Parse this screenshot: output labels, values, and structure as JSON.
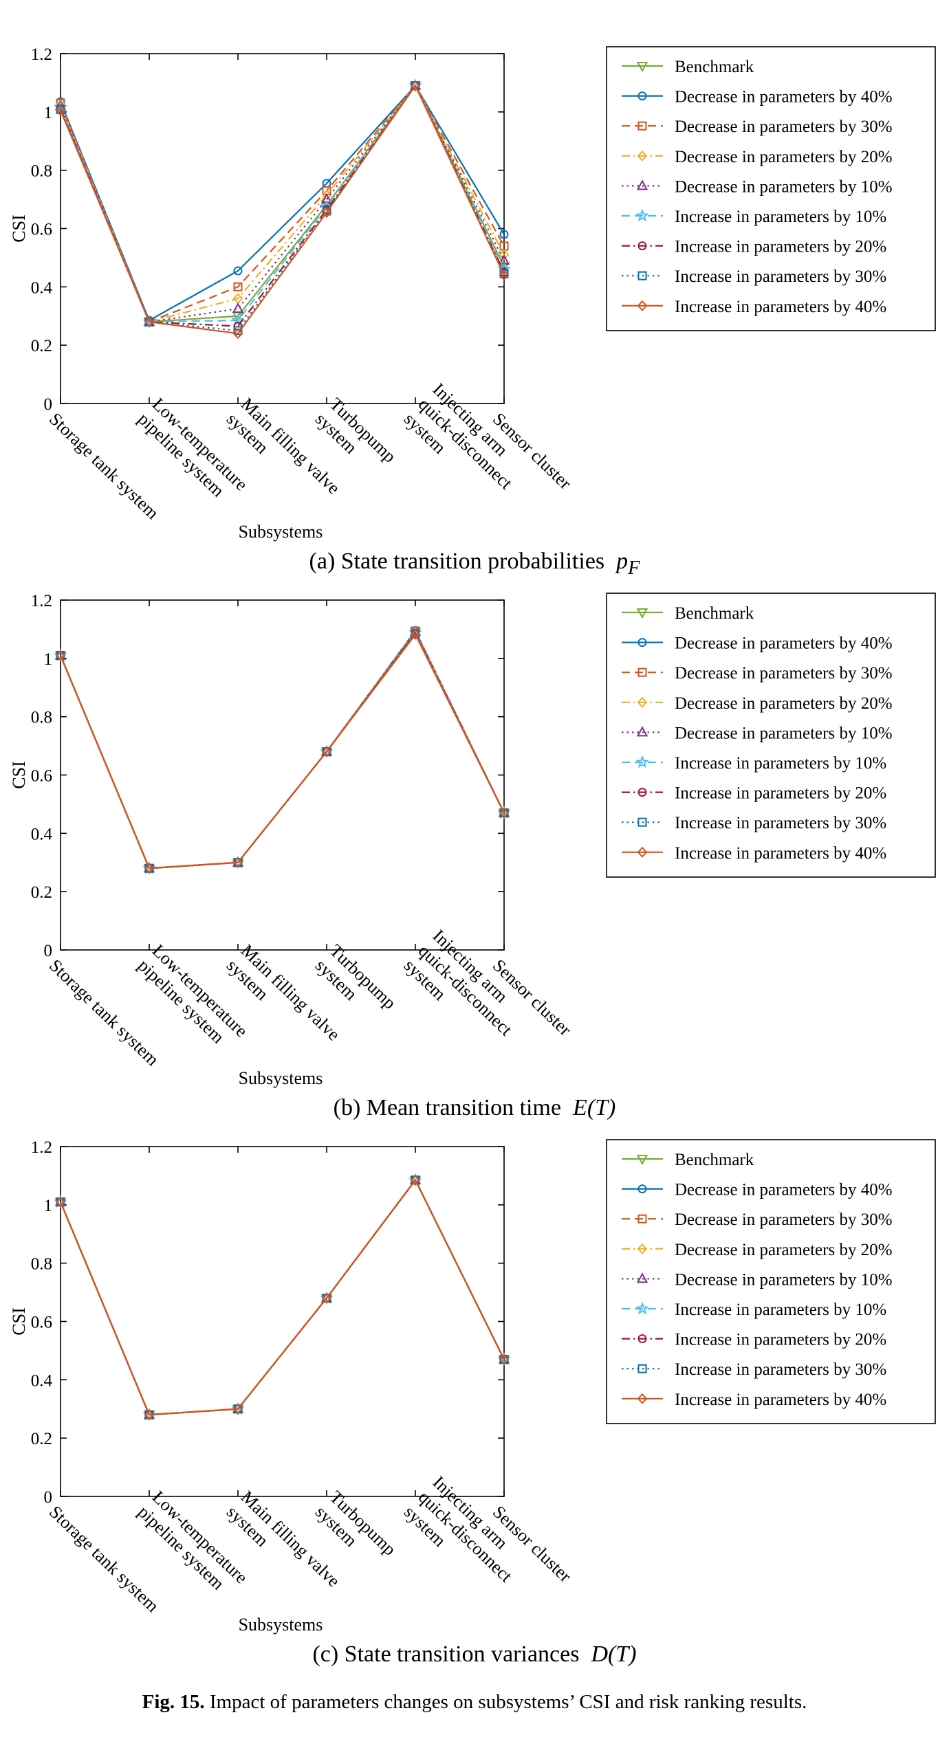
{
  "figure_caption": {
    "label": "Fig. 15.",
    "text": "Impact of parameters changes on subsystems’ CSI and risk ranking results."
  },
  "legend_entries": [
    {
      "label": "Benchmark",
      "color": "#77ac30",
      "dash": "solid",
      "marker": "triangle-down"
    },
    {
      "label": "Decrease in parameters by 40%",
      "color": "#0072bd",
      "dash": "solid",
      "marker": "circle"
    },
    {
      "label": "Decrease in parameters by 30%",
      "color": "#d95319",
      "dash": "dashed",
      "marker": "square"
    },
    {
      "label": "Decrease in parameters by 20%",
      "color": "#edb120",
      "dash": "dashdot",
      "marker": "diamond"
    },
    {
      "label": "Decrease in parameters by 10%",
      "color": "#7e2f8e",
      "dash": "dotted",
      "marker": "triangle-up"
    },
    {
      "label": "Increase in parameters  by 10%",
      "color": "#4dbeee",
      "dash": "dashed",
      "marker": "star"
    },
    {
      "label": "Increase in parameters  by 20%",
      "color": "#a2142f",
      "dash": "dashdot",
      "marker": "circle"
    },
    {
      "label": "Increase in parameters  by 30%",
      "color": "#0072bd",
      "dash": "dotted",
      "marker": "square"
    },
    {
      "label": "Increase in parameters  by 40%",
      "color": "#d95319",
      "dash": "solid",
      "marker": "diamond"
    }
  ],
  "chart_data": [
    {
      "type": "line",
      "caption": "(a) State transition probabilities",
      "caption_var": "p",
      "caption_sub": "F",
      "ylabel": "CSI",
      "xlabel": "Subsystems",
      "ylim": [
        0,
        1.2
      ],
      "yticks": [
        "0",
        "0.2",
        "0.4",
        "0.6",
        "0.8",
        "1",
        "1.2"
      ],
      "categories": [
        [
          "Storage tank system"
        ],
        [
          "Low-temperature",
          "pipeline system"
        ],
        [
          "Main filling valve",
          "system"
        ],
        [
          "Turbopump",
          "system"
        ],
        [
          "Injecting arm",
          "quick-disconnect",
          "system"
        ],
        [
          "Sensor cluster"
        ]
      ],
      "series": [
        {
          "name": "Benchmark",
          "values": [
            1.01,
            0.28,
            0.3,
            0.68,
            1.09,
            0.47
          ]
        },
        {
          "name": "Decrease in parameters by 40%",
          "values": [
            1.035,
            0.285,
            0.455,
            0.755,
            1.09,
            0.58
          ]
        },
        {
          "name": "Decrease in parameters by 30%",
          "values": [
            1.03,
            0.28,
            0.4,
            0.73,
            1.09,
            0.54
          ]
        },
        {
          "name": "Decrease in parameters by 20%",
          "values": [
            1.025,
            0.28,
            0.36,
            0.715,
            1.09,
            0.51
          ]
        },
        {
          "name": "Decrease in parameters by 10%",
          "values": [
            1.02,
            0.28,
            0.325,
            0.7,
            1.09,
            0.49
          ]
        },
        {
          "name": "Increase in parameters  by 10%",
          "values": [
            1.015,
            0.28,
            0.285,
            0.675,
            1.09,
            0.46
          ]
        },
        {
          "name": "Increase in parameters  by 20%",
          "values": [
            1.01,
            0.28,
            0.265,
            0.665,
            1.09,
            0.45
          ]
        },
        {
          "name": "Increase in parameters  by 30%",
          "values": [
            1.008,
            0.28,
            0.25,
            0.66,
            1.09,
            0.445
          ]
        },
        {
          "name": "Increase in parameters  by 40%",
          "values": [
            1.005,
            0.28,
            0.24,
            0.655,
            1.09,
            0.44
          ]
        }
      ]
    },
    {
      "type": "line",
      "caption": "(b) Mean transition time",
      "caption_var": "E(T)",
      "caption_sub": "",
      "ylabel": "CSI",
      "xlabel": "Subsystems",
      "ylim": [
        0,
        1.2
      ],
      "yticks": [
        "0",
        "0.2",
        "0.4",
        "0.6",
        "0.8",
        "1",
        "1.2"
      ],
      "categories": [
        [
          "Storage tank system"
        ],
        [
          "Low-temperature",
          "pipeline system"
        ],
        [
          "Main filling valve",
          "system"
        ],
        [
          "Turbopump",
          "system"
        ],
        [
          "Injecting arm",
          "quick-disconnect",
          "system"
        ],
        [
          "Sensor cluster"
        ]
      ],
      "series": [
        {
          "name": "Benchmark",
          "values": [
            1.01,
            0.28,
            0.3,
            0.68,
            1.09,
            0.47
          ]
        },
        {
          "name": "Decrease in parameters by 40%",
          "values": [
            1.01,
            0.28,
            0.3,
            0.68,
            1.095,
            0.47
          ]
        },
        {
          "name": "Decrease in parameters by 30%",
          "values": [
            1.01,
            0.28,
            0.3,
            0.68,
            1.094,
            0.47
          ]
        },
        {
          "name": "Decrease in parameters by 20%",
          "values": [
            1.01,
            0.28,
            0.3,
            0.68,
            1.093,
            0.47
          ]
        },
        {
          "name": "Decrease in parameters by 10%",
          "values": [
            1.01,
            0.28,
            0.3,
            0.68,
            1.092,
            0.47
          ]
        },
        {
          "name": "Increase in parameters  by 10%",
          "values": [
            1.01,
            0.28,
            0.3,
            0.68,
            1.088,
            0.47
          ]
        },
        {
          "name": "Increase in parameters  by 20%",
          "values": [
            1.01,
            0.28,
            0.3,
            0.68,
            1.086,
            0.47
          ]
        },
        {
          "name": "Increase in parameters  by 30%",
          "values": [
            1.01,
            0.28,
            0.3,
            0.68,
            1.084,
            0.47
          ]
        },
        {
          "name": "Increase in parameters  by 40%",
          "values": [
            1.01,
            0.28,
            0.3,
            0.68,
            1.082,
            0.47
          ]
        }
      ]
    },
    {
      "type": "line",
      "caption": "(c) State transition variances",
      "caption_var": "D(T)",
      "caption_sub": "",
      "ylabel": "CSI",
      "xlabel": "Subsystems",
      "ylim": [
        0,
        1.2
      ],
      "yticks": [
        "0",
        "0.2",
        "0.4",
        "0.6",
        "0.8",
        "1",
        "1.2"
      ],
      "categories": [
        [
          "Storage tank system"
        ],
        [
          "Low-temperature",
          "pipeline system"
        ],
        [
          "Main filling valve",
          "system"
        ],
        [
          "Turbopump",
          "system"
        ],
        [
          "Injecting arm",
          "quick-disconnect",
          "system"
        ],
        [
          "Sensor cluster"
        ]
      ],
      "series": [
        {
          "name": "Benchmark",
          "values": [
            1.01,
            0.28,
            0.3,
            0.68,
            1.085,
            0.47
          ]
        },
        {
          "name": "Decrease in parameters by 40%",
          "values": [
            1.01,
            0.28,
            0.3,
            0.68,
            1.085,
            0.47
          ]
        },
        {
          "name": "Decrease in parameters by 30%",
          "values": [
            1.01,
            0.28,
            0.3,
            0.68,
            1.085,
            0.47
          ]
        },
        {
          "name": "Decrease in parameters by 20%",
          "values": [
            1.01,
            0.28,
            0.3,
            0.68,
            1.085,
            0.47
          ]
        },
        {
          "name": "Decrease in parameters by 10%",
          "values": [
            1.01,
            0.28,
            0.3,
            0.68,
            1.085,
            0.47
          ]
        },
        {
          "name": "Increase in parameters  by 10%",
          "values": [
            1.01,
            0.28,
            0.3,
            0.68,
            1.085,
            0.47
          ]
        },
        {
          "name": "Increase in parameters  by 20%",
          "values": [
            1.01,
            0.28,
            0.3,
            0.68,
            1.085,
            0.47
          ]
        },
        {
          "name": "Increase in parameters  by 30%",
          "values": [
            1.01,
            0.28,
            0.3,
            0.68,
            1.085,
            0.47
          ]
        },
        {
          "name": "Increase in parameters  by 40%",
          "values": [
            1.01,
            0.28,
            0.3,
            0.68,
            1.085,
            0.47
          ]
        }
      ]
    }
  ]
}
